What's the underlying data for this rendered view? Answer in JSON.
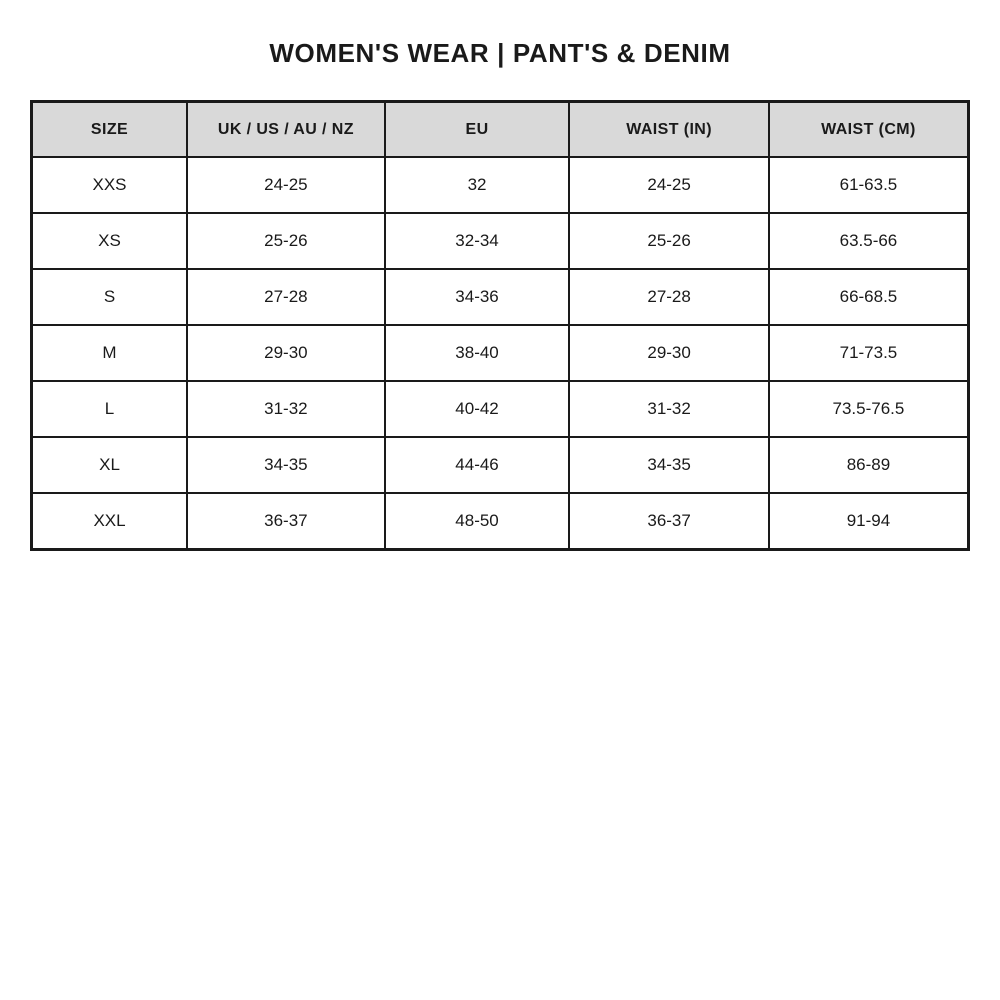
{
  "chart_data": {
    "type": "table",
    "title": "WOMEN'S WEAR | PANT'S & DENIM",
    "columns": [
      "SIZE",
      "UK / US / AU / NZ",
      "EU",
      "WAIST (IN)",
      "WAIST (CM)"
    ],
    "rows": [
      [
        "XXS",
        "24-25",
        "32",
        "24-25",
        "61-63.5"
      ],
      [
        "XS",
        "25-26",
        "32-34",
        "25-26",
        "63.5-66"
      ],
      [
        "S",
        "27-28",
        "34-36",
        "27-28",
        "66-68.5"
      ],
      [
        "M",
        "29-30",
        "38-40",
        "29-30",
        "71-73.5"
      ],
      [
        "L",
        "31-32",
        "40-42",
        "31-32",
        "73.5-76.5"
      ],
      [
        "XL",
        "34-35",
        "44-46",
        "34-35",
        "86-89"
      ],
      [
        "XXL",
        "36-37",
        "48-50",
        "36-37",
        "91-94"
      ]
    ],
    "layout": {
      "legend": "none",
      "grid": "full-borders",
      "header_style": "gray-filled"
    }
  },
  "colors": {
    "page_bg": "#ffffff",
    "header_bg": "#d9d9d9",
    "border": "#1a1a1a",
    "text": "#1a1a1a"
  }
}
